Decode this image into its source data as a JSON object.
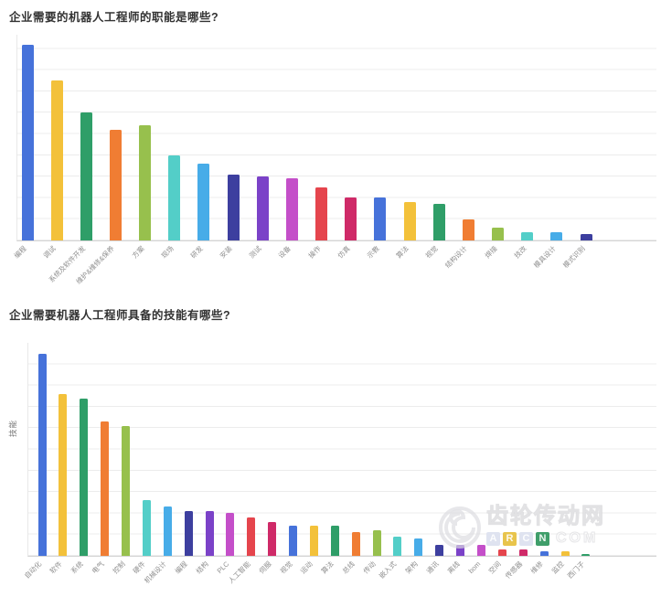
{
  "page": {
    "background": "#ffffff"
  },
  "palette": [
    "#4672da",
    "#f3c13a",
    "#2f9e68",
    "#f07d33",
    "#97c04d",
    "#53cec8",
    "#47ace8",
    "#3d3f9f",
    "#7b42c8",
    "#c44fc9",
    "#e5454d",
    "#cf2a68"
  ],
  "chart_data": [
    {
      "type": "bar",
      "title": "企业需要的机器人工程师的职能是哪些?",
      "categories": [
        "编程",
        "调试",
        "系统及软件开发",
        "维护&维修&保养",
        "方案",
        "现场",
        "研发",
        "安装",
        "测试",
        "设备",
        "操作",
        "仿真",
        "示教",
        "算法",
        "视觉",
        "结构设计",
        "焊接",
        "技改",
        "模具设计",
        "模式识别"
      ],
      "values": [
        92,
        75,
        60,
        52,
        54,
        40,
        36,
        31,
        30,
        29,
        25,
        20,
        20,
        18,
        17,
        10,
        6,
        4,
        4,
        3
      ],
      "xlabel": "",
      "ylabel": "",
      "ylim": [
        0,
        96
      ],
      "gridline_step": 10,
      "grid": true,
      "y_tick_labels_visible": false,
      "legend": "none",
      "bar_color_rule": "palette repeats every 12 bars"
    },
    {
      "type": "bar",
      "title": "企业需要机器人工程师具备的技能有哪些?",
      "categories": [
        "自动化",
        "软件",
        "系统",
        "电气",
        "控制",
        "硬件",
        "机械设计",
        "编程",
        "结构",
        "PLC",
        "人工智能",
        "伺服",
        "视觉",
        "运动",
        "算法",
        "总线",
        "传动",
        "嵌入式",
        "架构",
        "通讯",
        "离线",
        "bom",
        "空间",
        "传感器",
        "维修",
        "监控",
        "西门子"
      ],
      "values": [
        95,
        76,
        74,
        63,
        61,
        26,
        23,
        21,
        21,
        20,
        18,
        16,
        14,
        14,
        14,
        11,
        12,
        9,
        8,
        5,
        5,
        5,
        3,
        3,
        2,
        2,
        1
      ],
      "xlabel": "",
      "ylabel": "技能",
      "ylim": [
        0,
        100
      ],
      "gridline_step": 10,
      "grid": true,
      "y_tick_labels_visible": false,
      "legend": "none",
      "bar_color_rule": "palette repeats every 12 bars"
    }
  ],
  "watermark": {
    "logo": "swirl-icon",
    "line1": "齿轮传动网",
    "blocks": [
      {
        "char": "A",
        "color": "#dfe3f0"
      },
      {
        "char": "R",
        "color": "#e8c44c"
      },
      {
        "char": "C",
        "color": "#dfe3f0"
      },
      {
        "char": "N",
        "color": "#3f9e6a"
      }
    ],
    "suffix": "COM"
  }
}
